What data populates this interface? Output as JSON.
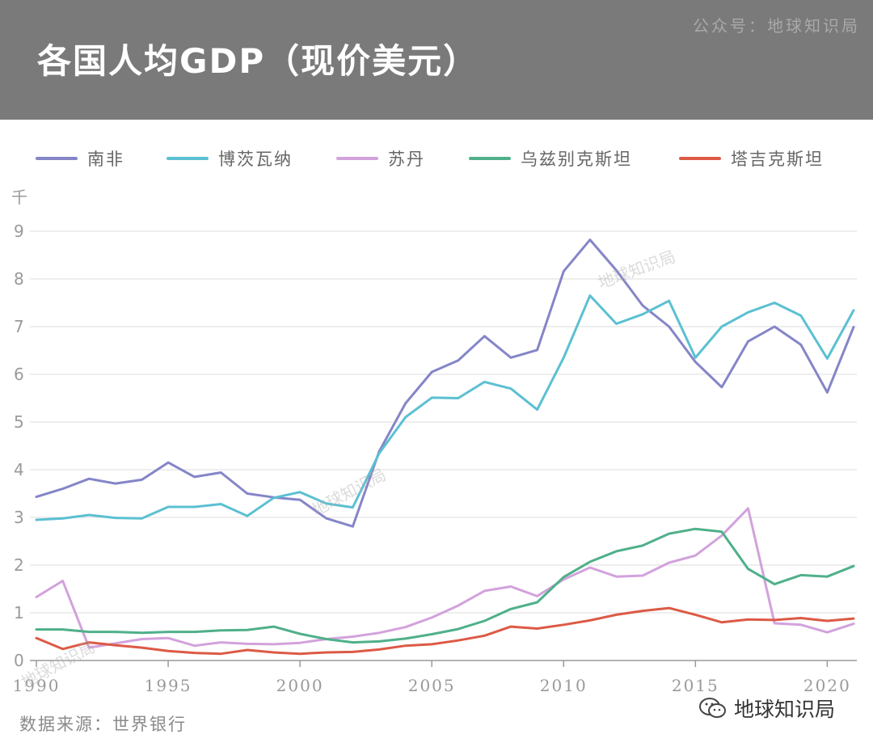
{
  "header": {
    "title": "各国人均GDP（现价美元）",
    "account": "公众号：地球知识局"
  },
  "footer": {
    "source": "数据来源：世界银行",
    "brand": "地球知识局"
  },
  "watermark": "地球知识局",
  "colors": {
    "南非": "#8585c8",
    "博茨瓦纳": "#5bc0d2",
    "苏丹": "#d2a2dc",
    "乌兹别克斯坦": "#4fb08a",
    "塔吉克斯坦": "#dc5a46"
  },
  "chart_data": {
    "type": "line",
    "title": "各国人均GDP（现价美元）",
    "ylabel": "千",
    "xlabel": "",
    "ylim": [
      0,
      9
    ],
    "xlim": [
      1990,
      2021
    ],
    "yticks": [
      "0",
      "1",
      "2",
      "3",
      "4",
      "5",
      "6",
      "7",
      "8",
      "9"
    ],
    "xticks": [
      "1990",
      "1995",
      "2000",
      "2005",
      "2010",
      "2015",
      "2020"
    ],
    "x": [
      1990,
      1991,
      1992,
      1993,
      1994,
      1995,
      1996,
      1997,
      1998,
      1999,
      2000,
      2001,
      2002,
      2003,
      2004,
      2005,
      2006,
      2007,
      2008,
      2009,
      2010,
      2011,
      2012,
      2013,
      2014,
      2015,
      2016,
      2017,
      2018,
      2019,
      2020,
      2021
    ],
    "series": [
      {
        "name": "南非",
        "values": [
          3.43,
          3.6,
          3.81,
          3.71,
          3.79,
          4.15,
          3.85,
          3.94,
          3.5,
          3.42,
          3.37,
          2.98,
          2.81,
          4.38,
          5.39,
          6.05,
          6.29,
          6.8,
          6.35,
          6.51,
          8.16,
          8.82,
          8.18,
          7.44,
          7.0,
          6.26,
          5.73,
          6.69,
          7.0,
          6.62,
          5.62,
          6.99
        ]
      },
      {
        "name": "博茨瓦纳",
        "values": [
          2.95,
          2.98,
          3.05,
          2.99,
          2.98,
          3.22,
          3.22,
          3.28,
          3.03,
          3.41,
          3.53,
          3.29,
          3.21,
          4.34,
          5.1,
          5.51,
          5.5,
          5.84,
          5.7,
          5.26,
          6.35,
          7.65,
          7.06,
          7.26,
          7.54,
          6.35,
          7.0,
          7.3,
          7.5,
          7.23,
          6.33,
          7.34
        ]
      },
      {
        "name": "苏丹",
        "values": [
          1.33,
          1.67,
          0.27,
          0.36,
          0.45,
          0.47,
          0.31,
          0.38,
          0.35,
          0.34,
          0.37,
          0.45,
          0.5,
          0.58,
          0.7,
          0.9,
          1.15,
          1.46,
          1.55,
          1.35,
          1.7,
          1.95,
          1.76,
          1.78,
          2.05,
          2.2,
          2.62,
          3.19,
          0.78,
          0.75,
          0.59,
          0.77
        ]
      },
      {
        "name": "乌兹别克斯坦",
        "values": [
          0.65,
          0.65,
          0.6,
          0.6,
          0.58,
          0.6,
          0.6,
          0.63,
          0.64,
          0.71,
          0.56,
          0.45,
          0.38,
          0.4,
          0.46,
          0.55,
          0.66,
          0.83,
          1.08,
          1.22,
          1.75,
          2.07,
          2.29,
          2.41,
          2.66,
          2.76,
          2.7,
          1.92,
          1.6,
          1.79,
          1.76,
          1.98
        ]
      },
      {
        "name": "塔吉克斯坦",
        "values": [
          0.47,
          0.24,
          0.38,
          0.32,
          0.27,
          0.2,
          0.16,
          0.14,
          0.22,
          0.17,
          0.14,
          0.17,
          0.18,
          0.23,
          0.31,
          0.34,
          0.42,
          0.52,
          0.71,
          0.67,
          0.75,
          0.84,
          0.96,
          1.04,
          1.1,
          0.96,
          0.8,
          0.86,
          0.85,
          0.89,
          0.83,
          0.88
        ]
      }
    ]
  }
}
